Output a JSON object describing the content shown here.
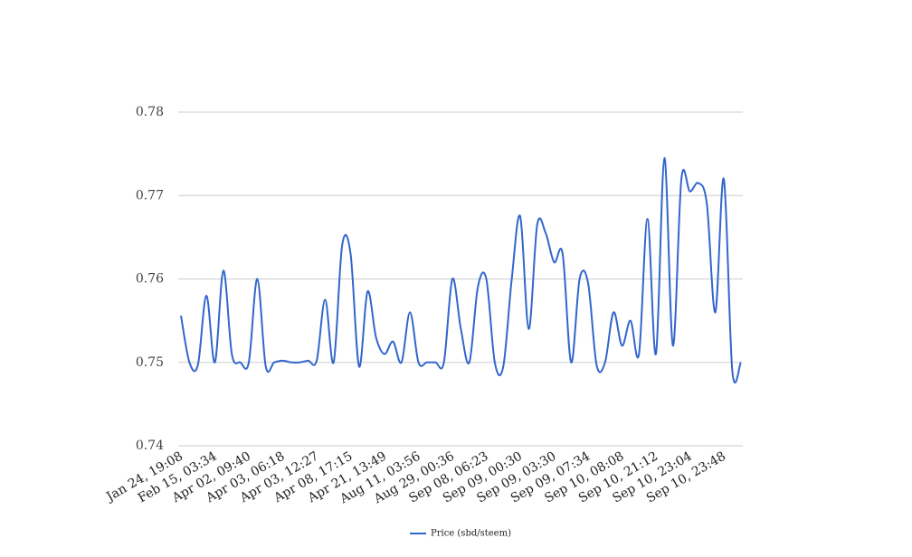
{
  "chart_data": {
    "type": "line",
    "categories": [
      "Jan 24, 19:08",
      null,
      null,
      null,
      "Feb 15, 03:34",
      null,
      null,
      null,
      "Apr 02, 09:40",
      null,
      null,
      null,
      "Apr 03, 06:18",
      null,
      null,
      null,
      "Apr 03, 12:27",
      null,
      null,
      null,
      "Apr 08, 17:15",
      null,
      null,
      null,
      "Apr 21, 13:49",
      null,
      null,
      null,
      "Aug 11, 03:56",
      null,
      null,
      null,
      "Aug 29, 00:36",
      null,
      null,
      null,
      "Sep 08, 06:23",
      null,
      null,
      null,
      "Sep 09, 00:30",
      null,
      null,
      null,
      "Sep 09, 03:30",
      null,
      null,
      null,
      "Sep 09, 07:34",
      null,
      null,
      null,
      "Sep 10, 08:08",
      null,
      null,
      null,
      "Sep 10, 21:12",
      null,
      null,
      null,
      "Sep 10, 23:04",
      null,
      null,
      null,
      "Sep 10, 23:48",
      null,
      null
    ],
    "series": [
      {
        "name": "Price (sbd/steem)",
        "color": "#3366cc",
        "values": [
          0.7556,
          0.75,
          0.7497,
          0.758,
          0.75,
          0.761,
          0.751,
          0.75,
          0.75,
          0.76,
          0.7495,
          0.75,
          0.7502,
          0.75,
          0.75,
          0.7502,
          0.7502,
          0.7575,
          0.75,
          0.764,
          0.763,
          0.7495,
          0.7585,
          0.753,
          0.751,
          0.7525,
          0.75,
          0.756,
          0.75,
          0.75,
          0.75,
          0.75,
          0.76,
          0.754,
          0.75,
          0.759,
          0.76,
          0.75,
          0.7495,
          0.76,
          0.7675,
          0.754,
          0.7665,
          0.7655,
          0.762,
          0.763,
          0.75,
          0.76,
          0.7595,
          0.7497,
          0.75,
          0.756,
          0.752,
          0.755,
          0.751,
          0.7672,
          0.751,
          0.7745,
          0.752,
          0.772,
          0.7705,
          0.7715,
          0.769,
          0.756,
          0.772,
          0.749,
          0.75
        ]
      }
    ],
    "ylim": [
      0.74,
      0.78
    ],
    "yticks": [
      0.74,
      0.75,
      0.76,
      0.77,
      0.78
    ],
    "grid": true,
    "legend": "bottom"
  }
}
